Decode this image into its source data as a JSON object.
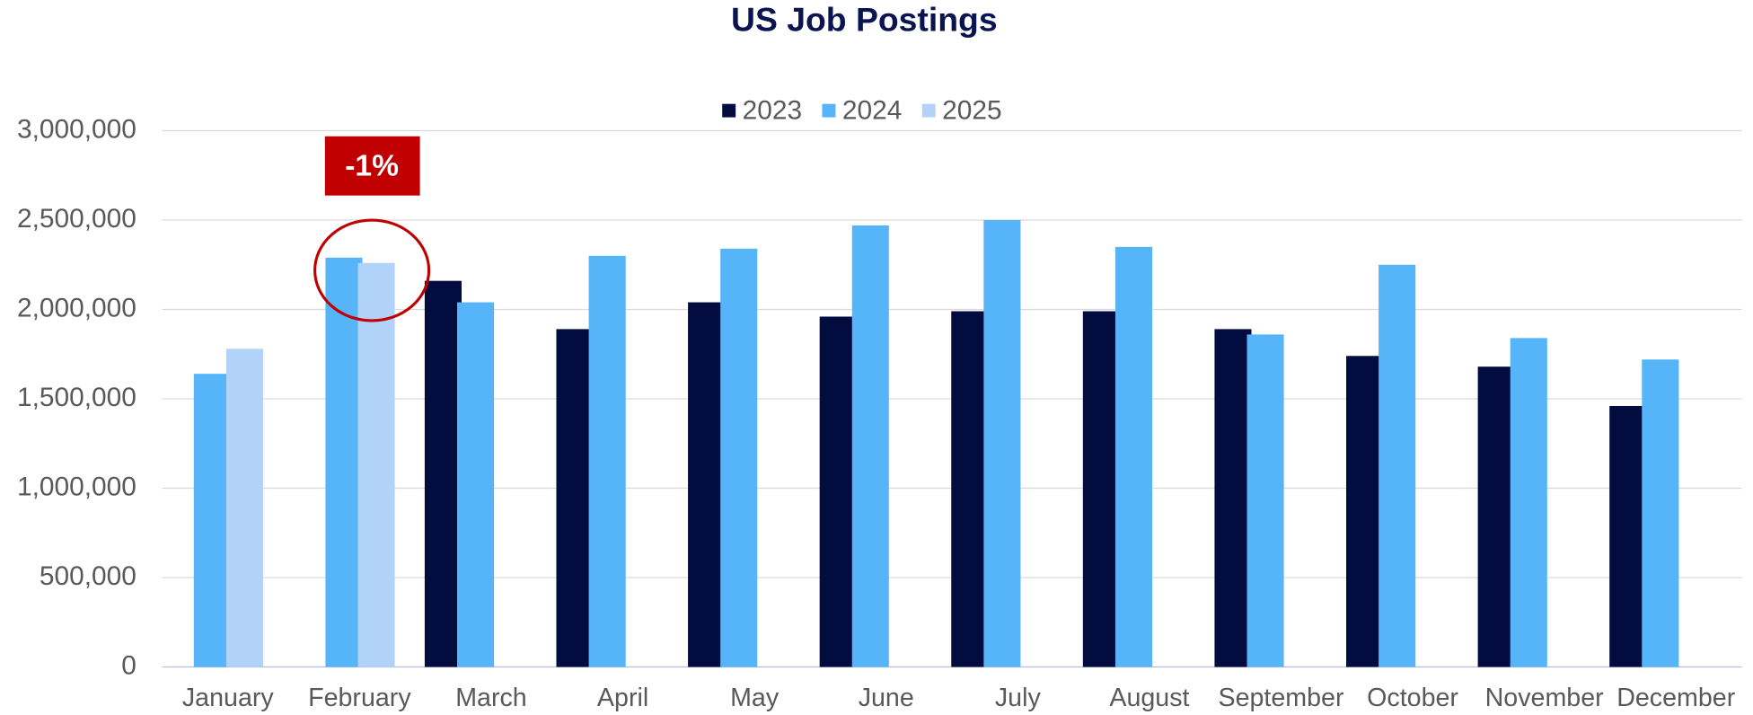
{
  "chart_data": {
    "type": "bar",
    "title": "US Job Postings",
    "categories": [
      "January",
      "February",
      "March",
      "April",
      "May",
      "June",
      "July",
      "August",
      "September",
      "October",
      "November",
      "December"
    ],
    "series": [
      {
        "name": "2023",
        "color": "#030c3e",
        "values": [
          null,
          null,
          2160000,
          1890000,
          2040000,
          1960000,
          1990000,
          1990000,
          1890000,
          1740000,
          1680000,
          1460000
        ]
      },
      {
        "name": "2024",
        "color": "#56b4f8",
        "values": [
          1640000,
          2290000,
          2040000,
          2300000,
          2340000,
          2470000,
          2500000,
          2350000,
          1860000,
          2250000,
          1840000,
          1720000
        ]
      },
      {
        "name": "2025",
        "color": "#b1d3fa",
        "values": [
          1780000,
          2260000,
          null,
          null,
          null,
          null,
          null,
          null,
          null,
          null,
          null,
          null
        ]
      }
    ],
    "ylim": [
      0,
      3000000
    ],
    "yticks": [
      0,
      {
        "value": 500000,
        "label": "500,000"
      },
      {
        "value": 1000000,
        "label": "1,000,000"
      },
      {
        "value": 1500000,
        "label": "1,500,000"
      },
      {
        "value": 2000000,
        "label": "2,000,000"
      },
      {
        "value": 2500000,
        "label": "2,500,000"
      },
      {
        "value": 3000000,
        "label": "3,000,000"
      }
    ],
    "grid": true,
    "legend": "top",
    "annotations": [
      {
        "text": "-1%"
      }
    ]
  }
}
